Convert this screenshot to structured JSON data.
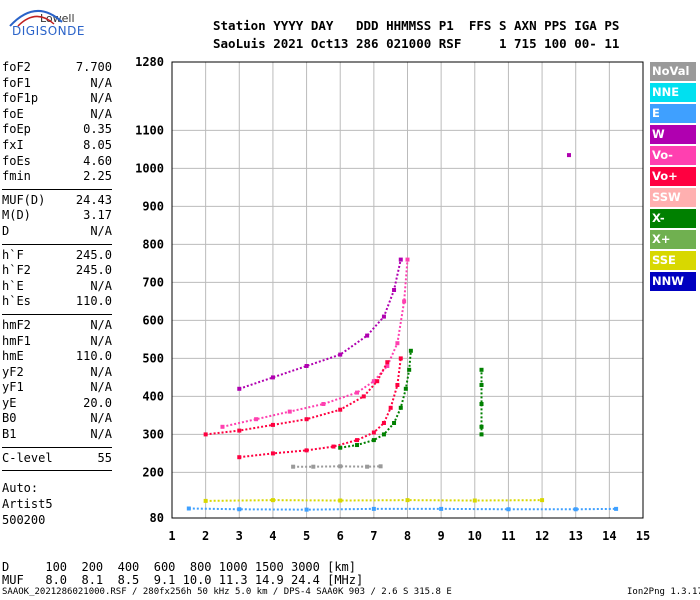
{
  "logo": {
    "line1": "Lowell",
    "line2": "DIGISONDE"
  },
  "header": {
    "line1": "Station YYYY DAY   DDD HHMMSS P1  FFS S AXN PPS IGA PS",
    "line2": "SaoLuis 2021 Oct13 286 021000 RSF     1 715 100 00- 11"
  },
  "params_a": [
    {
      "name": "foF2",
      "value": "7.700"
    },
    {
      "name": "foF1",
      "value": "N/A"
    },
    {
      "name": "foF1p",
      "value": "N/A"
    },
    {
      "name": "foE",
      "value": "N/A"
    },
    {
      "name": "foEp",
      "value": "0.35"
    },
    {
      "name": "fxI",
      "value": "8.05"
    },
    {
      "name": "foEs",
      "value": "4.60"
    },
    {
      "name": "fmin",
      "value": "2.25"
    }
  ],
  "params_b": [
    {
      "name": "MUF(D)",
      "value": "24.43"
    },
    {
      "name": "M(D)",
      "value": "3.17"
    },
    {
      "name": "D",
      "value": "N/A"
    }
  ],
  "params_c": [
    {
      "name": "h`F",
      "value": "245.0"
    },
    {
      "name": "h`F2",
      "value": "245.0"
    },
    {
      "name": "h`E",
      "value": "N/A"
    },
    {
      "name": "h`Es",
      "value": "110.0"
    }
  ],
  "params_d": [
    {
      "name": "hmF2",
      "value": "N/A"
    },
    {
      "name": "hmF1",
      "value": "N/A"
    },
    {
      "name": "hmE",
      "value": "110.0"
    },
    {
      "name": "yF2",
      "value": "N/A"
    },
    {
      "name": "yF1",
      "value": "N/A"
    },
    {
      "name": "yE",
      "value": "20.0"
    },
    {
      "name": "B0",
      "value": "N/A"
    },
    {
      "name": "B1",
      "value": "N/A"
    }
  ],
  "params_e": [
    {
      "name": "C-level",
      "value": "55"
    }
  ],
  "autoscaling": {
    "line1": "Auto:",
    "line2": "Artist5",
    "line3": "500200"
  },
  "legend": [
    {
      "label": "NoVal",
      "color": "#9a9a9a"
    },
    {
      "label": "NNE",
      "color": "#00e0f0"
    },
    {
      "label": "E",
      "color": "#3fa0ff"
    },
    {
      "label": "W",
      "color": "#b000b0"
    },
    {
      "label": "Vo-",
      "color": "#ff40b0"
    },
    {
      "label": "Vo+",
      "color": "#ff0040"
    },
    {
      "label": "SSW",
      "color": "#ffb0b0"
    },
    {
      "label": "X-",
      "color": "#008000"
    },
    {
      "label": "X+",
      "color": "#70b050"
    },
    {
      "label": "SSE",
      "color": "#d8d800"
    },
    {
      "label": "NNW",
      "color": "#0000c0"
    }
  ],
  "muf_table": {
    "d_line": "D     100  200  400  600  800 1000 1500 3000 [km]",
    "muf_line": "MUF   8.0  8.1  8.5  9.1 10.0 11.3 14.9 24.4 [MHz]"
  },
  "footer": "SAAOK_2021286021000.RSF / 280fx256h 50 kHz 5.0 km / DPS-4 SAA0K 903 / 2.6 S 315.8 E",
  "version": "Ion2Png 1.3.17",
  "chart_data": {
    "type": "scatter",
    "xlim": [
      1,
      15
    ],
    "ylim": [
      80,
      1280
    ],
    "x_ticks": [
      1,
      2,
      3,
      4,
      5,
      6,
      7,
      8,
      9,
      10,
      11,
      12,
      13,
      14,
      15
    ],
    "y_ticks": [
      80,
      200,
      300,
      400,
      500,
      600,
      700,
      800,
      900,
      1000,
      1100,
      1280
    ],
    "grid": true,
    "traces": [
      {
        "name": "X-",
        "color": "#008000",
        "points": [
          [
            6.0,
            265
          ],
          [
            6.5,
            272
          ],
          [
            7.0,
            285
          ],
          [
            7.3,
            300
          ],
          [
            7.6,
            330
          ],
          [
            7.8,
            370
          ],
          [
            7.95,
            420
          ],
          [
            8.05,
            470
          ],
          [
            8.1,
            520
          ]
        ]
      },
      {
        "name": "Vo+",
        "color": "#ff0040",
        "points": [
          [
            3.0,
            240
          ],
          [
            4.0,
            250
          ],
          [
            5.0,
            258
          ],
          [
            5.8,
            268
          ],
          [
            6.5,
            285
          ],
          [
            7.0,
            305
          ],
          [
            7.3,
            330
          ],
          [
            7.5,
            370
          ],
          [
            7.7,
            430
          ],
          [
            7.8,
            500
          ]
        ]
      },
      {
        "name": "Vo-",
        "color": "#ff40b0",
        "points": [
          [
            2.5,
            320
          ],
          [
            3.5,
            340
          ],
          [
            4.5,
            360
          ],
          [
            5.5,
            380
          ],
          [
            6.5,
            410
          ],
          [
            7.0,
            440
          ],
          [
            7.4,
            480
          ],
          [
            7.7,
            540
          ],
          [
            7.9,
            650
          ],
          [
            8.0,
            760
          ]
        ]
      },
      {
        "name": "W",
        "color": "#b000b0",
        "points": [
          [
            3.0,
            420
          ],
          [
            4.0,
            450
          ],
          [
            5.0,
            480
          ],
          [
            6.0,
            510
          ],
          [
            6.8,
            560
          ],
          [
            7.3,
            610
          ],
          [
            7.6,
            680
          ],
          [
            7.8,
            760
          ]
        ]
      },
      {
        "name": "Vo+",
        "color": "#ff0040",
        "points": [
          [
            2.0,
            300
          ],
          [
            3.0,
            310
          ],
          [
            4.0,
            325
          ],
          [
            5.0,
            340
          ],
          [
            6.0,
            365
          ],
          [
            6.7,
            400
          ],
          [
            7.1,
            440
          ],
          [
            7.4,
            490
          ]
        ]
      },
      {
        "name": "E",
        "color": "#3fa0ff",
        "points": [
          [
            1.5,
            105
          ],
          [
            3.0,
            103
          ],
          [
            5.0,
            102
          ],
          [
            7.0,
            104
          ],
          [
            9.0,
            104
          ],
          [
            11.0,
            103
          ],
          [
            13.0,
            103
          ],
          [
            14.2,
            104
          ]
        ]
      },
      {
        "name": "SSE",
        "color": "#d8d800",
        "points": [
          [
            2.0,
            125
          ],
          [
            4.0,
            127
          ],
          [
            6.0,
            126
          ],
          [
            8.0,
            127
          ],
          [
            10.0,
            126
          ],
          [
            12.0,
            127
          ]
        ]
      },
      {
        "name": "X-",
        "color": "#008000",
        "points": [
          [
            10.2,
            300
          ],
          [
            10.2,
            320
          ],
          [
            10.2,
            380
          ],
          [
            10.2,
            430
          ],
          [
            10.2,
            470
          ]
        ]
      },
      {
        "name": "NoVal",
        "color": "#9a9a9a",
        "points": [
          [
            4.6,
            215
          ],
          [
            5.2,
            215
          ],
          [
            6.0,
            216
          ],
          [
            6.8,
            215
          ],
          [
            7.2,
            216
          ]
        ]
      },
      {
        "name": "W",
        "color": "#b000b0",
        "points": [
          [
            12.8,
            1035
          ]
        ]
      }
    ]
  }
}
